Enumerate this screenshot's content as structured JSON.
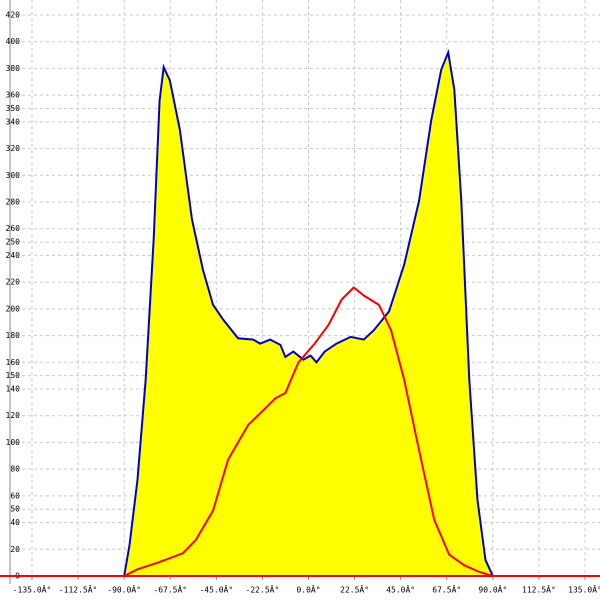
{
  "chart_data": {
    "type": "line",
    "xlim": [
      -135,
      135
    ],
    "ylim": [
      0,
      420
    ],
    "xticks": [
      {
        "value": -135,
        "label": "-135.0Â°"
      },
      {
        "value": -112.5,
        "label": "-112.5Â°"
      },
      {
        "value": -90,
        "label": "-90.0Â°"
      },
      {
        "value": -67.5,
        "label": "-67.5Â°"
      },
      {
        "value": -45,
        "label": "-45.0Â°"
      },
      {
        "value": -22.5,
        "label": "-22.5Â°"
      },
      {
        "value": 0,
        "label": "0.0Â°"
      },
      {
        "value": 22.5,
        "label": "22.5Â°"
      },
      {
        "value": 45,
        "label": "45.0Â°"
      },
      {
        "value": 67.5,
        "label": "67.5Â°"
      },
      {
        "value": 90,
        "label": "90.0Â°"
      },
      {
        "value": 112.5,
        "label": "112.5Â°"
      },
      {
        "value": 135,
        "label": "135.0Â°"
      }
    ],
    "yticks": [
      0,
      20,
      40,
      50,
      60,
      80,
      100,
      120,
      140,
      150,
      160,
      180,
      200,
      220,
      240,
      250,
      260,
      280,
      300,
      320,
      340,
      350,
      360,
      380,
      400,
      420
    ],
    "grid": true,
    "axis_color": "#ff0000",
    "series": [
      {
        "color": "#0000cc",
        "fill": "#ffff00",
        "x": [
          -90,
          -87.4,
          -83.5,
          -79.5,
          -75.6,
          -72.7,
          -70.7,
          -67.7,
          -62.8,
          -56.9,
          -51.5,
          -46.6,
          -41.7,
          -34.4,
          -27.0,
          -23.6,
          -18.7,
          -13.7,
          -11.3,
          -7.4,
          -2.5,
          1.0,
          3.9,
          7.9,
          13.7,
          20.6,
          27.0,
          31.9,
          39.3,
          46.7,
          54.0,
          59.9,
          64.8,
          68.2,
          71.2,
          74.6,
          78.5,
          82.5,
          86.4,
          90
        ],
        "values": [
          0,
          23,
          72,
          147,
          252,
          356,
          381,
          371,
          334,
          267,
          229,
          203,
          192,
          178,
          177,
          174,
          177,
          173,
          164,
          168,
          162,
          165,
          160,
          168,
          174,
          179,
          177,
          184,
          198,
          233,
          281,
          341,
          379,
          392,
          364,
          281,
          147,
          57,
          12,
          0
        ]
      },
      {
        "color": "#ff0000",
        "x": [
          -90,
          -83.5,
          -73.6,
          -61.4,
          -55.0,
          -46.6,
          -39.3,
          -29.5,
          -22.1,
          -16.2,
          -11.3,
          -4.9,
          2.5,
          9.8,
          16.2,
          22.1,
          27.0,
          34.4,
          40.3,
          46.7,
          54.0,
          61.4,
          68.7,
          76.1,
          83.5,
          90
        ],
        "values": [
          0,
          5,
          10,
          17,
          27,
          49,
          87,
          113,
          124,
          133,
          137,
          160,
          173,
          188,
          207,
          216,
          210,
          203,
          184,
          147,
          94,
          42,
          16,
          8,
          3,
          0
        ]
      }
    ]
  }
}
